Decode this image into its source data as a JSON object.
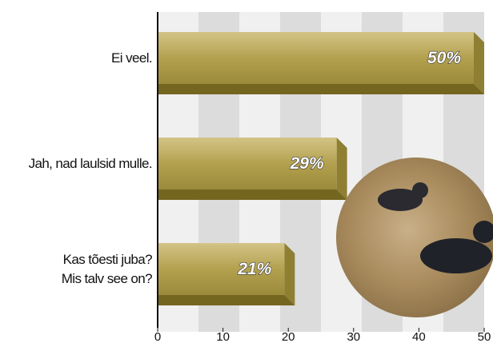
{
  "chart_data": {
    "type": "bar",
    "orientation": "horizontal",
    "categories": [
      "Ei veel.",
      "Jah, nad laulsid mulle.",
      "Kas tõesti juba?\nMis talv see on?"
    ],
    "values": [
      50,
      29,
      21
    ],
    "value_labels": [
      "50%",
      "29%",
      "21%"
    ],
    "color": "#b3a14f",
    "xlim": [
      0,
      50
    ],
    "xticks": [
      0,
      10,
      20,
      30,
      40,
      50
    ]
  }
}
